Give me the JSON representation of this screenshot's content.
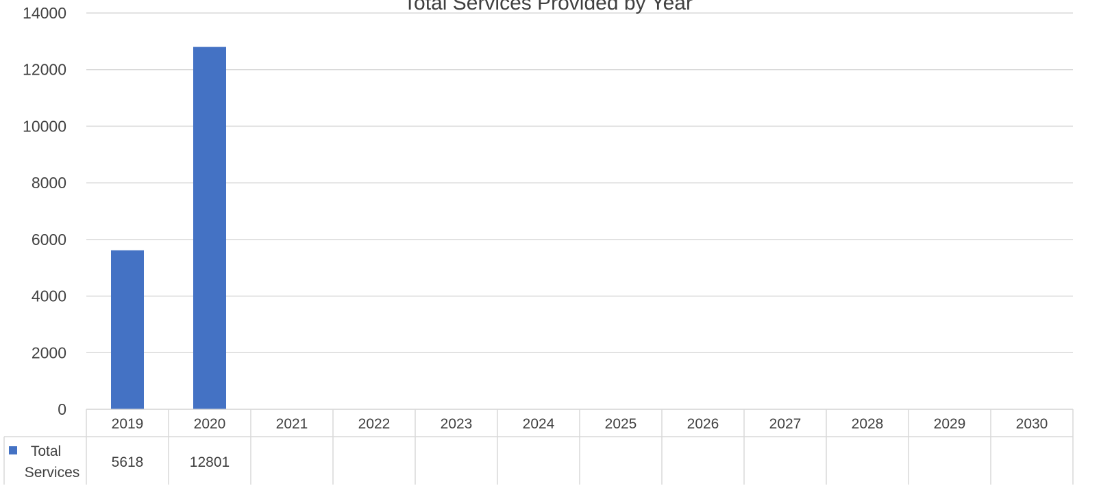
{
  "chart_data": {
    "type": "bar",
    "title": "Total Services Provided by Year",
    "categories": [
      "2019",
      "2020",
      "2021",
      "2022",
      "2023",
      "2024",
      "2025",
      "2026",
      "2027",
      "2028",
      "2029",
      "2030"
    ],
    "series": [
      {
        "name": "Total Services",
        "color": "#4472C4",
        "values": [
          5618,
          12801,
          null,
          null,
          null,
          null,
          null,
          null,
          null,
          null,
          null,
          null
        ]
      }
    ],
    "ylim": [
      0,
      14000
    ],
    "yticks": [
      "0",
      "2000",
      "4000",
      "6000",
      "8000",
      "10000",
      "12000",
      "14000"
    ],
    "grid": true,
    "data_table": true,
    "legend": "in data table",
    "table_values": [
      "5618",
      "12801",
      "",
      "",
      "",
      "",
      "",
      "",
      "",
      "",
      "",
      ""
    ],
    "legend_lines": [
      "Total",
      "Services"
    ]
  }
}
